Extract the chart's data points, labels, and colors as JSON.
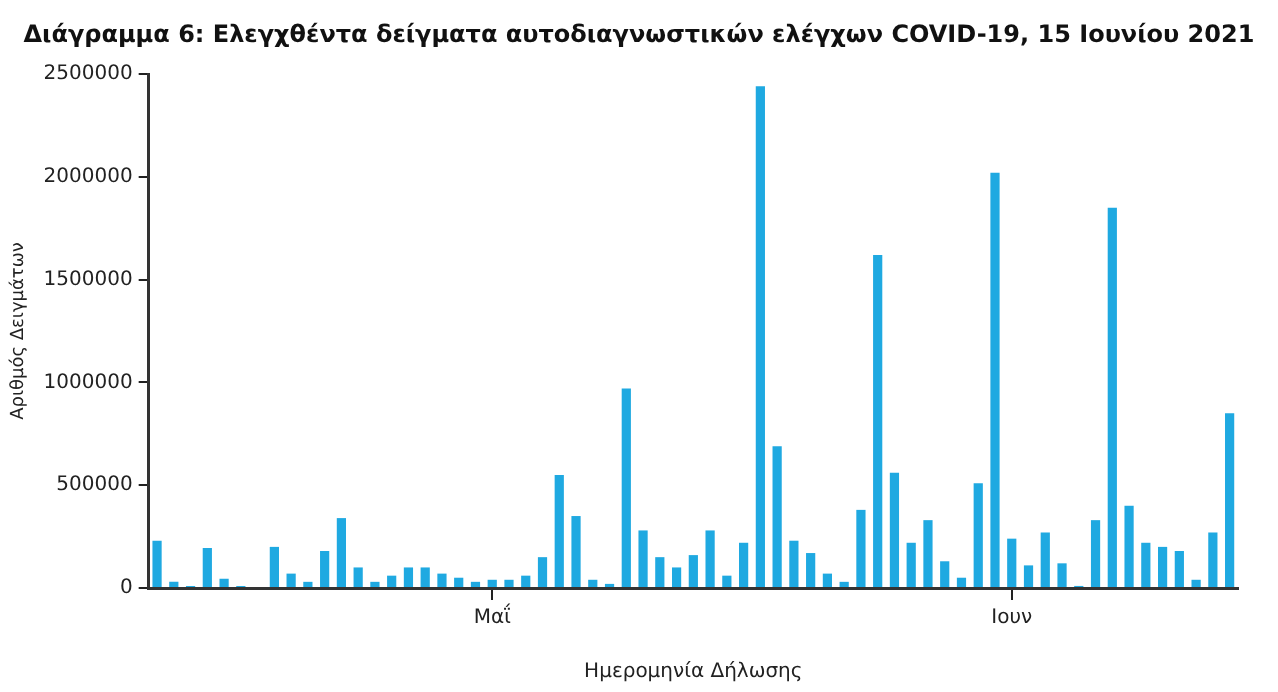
{
  "chart_data": {
    "type": "bar",
    "title": "Διάγραμμα 6: Ελεγχθέντα δείγματα αυτοδιαγνωστικών ελέγχων COVID-19, 15 Ιουνίου 2021",
    "xlabel": "Ημερομηνία Δήλωσης",
    "ylabel": "Αριθμός Δειγμάτων",
    "categories": [
      null,
      null,
      null,
      null,
      null,
      null,
      null,
      null,
      null,
      null,
      null,
      null,
      null,
      null,
      null,
      null,
      null,
      null,
      null,
      null,
      "Μαΐ",
      null,
      null,
      null,
      null,
      null,
      null,
      null,
      null,
      null,
      null,
      null,
      null,
      null,
      null,
      null,
      null,
      null,
      null,
      null,
      null,
      null,
      null,
      null,
      null,
      null,
      null,
      null,
      null,
      null,
      null,
      "Ιουν",
      null,
      null,
      null,
      null,
      null,
      null,
      null,
      null,
      null,
      null,
      null,
      null,
      null
    ],
    "values": [
      230000,
      30000,
      10000,
      195000,
      45000,
      10000,
      null,
      200000,
      70000,
      30000,
      180000,
      340000,
      100000,
      30000,
      60000,
      100000,
      100000,
      70000,
      50000,
      30000,
      40000,
      40000,
      60000,
      150000,
      550000,
      350000,
      40000,
      20000,
      970000,
      280000,
      150000,
      100000,
      160000,
      280000,
      60000,
      220000,
      2440000,
      690000,
      230000,
      170000,
      70000,
      30000,
      380000,
      1620000,
      560000,
      220000,
      330000,
      130000,
      50000,
      510000,
      2020000,
      240000,
      110000,
      270000,
      120000,
      10000,
      330000,
      1850000,
      400000,
      220000,
      200000,
      180000,
      40000,
      270000,
      850000
    ],
    "color": "#1fa9e1",
    "ylim": [
      0,
      2500000
    ],
    "yticks": [
      0,
      500000,
      1000000,
      1500000,
      2000000,
      2500000
    ],
    "grid": false,
    "legend": false
  }
}
